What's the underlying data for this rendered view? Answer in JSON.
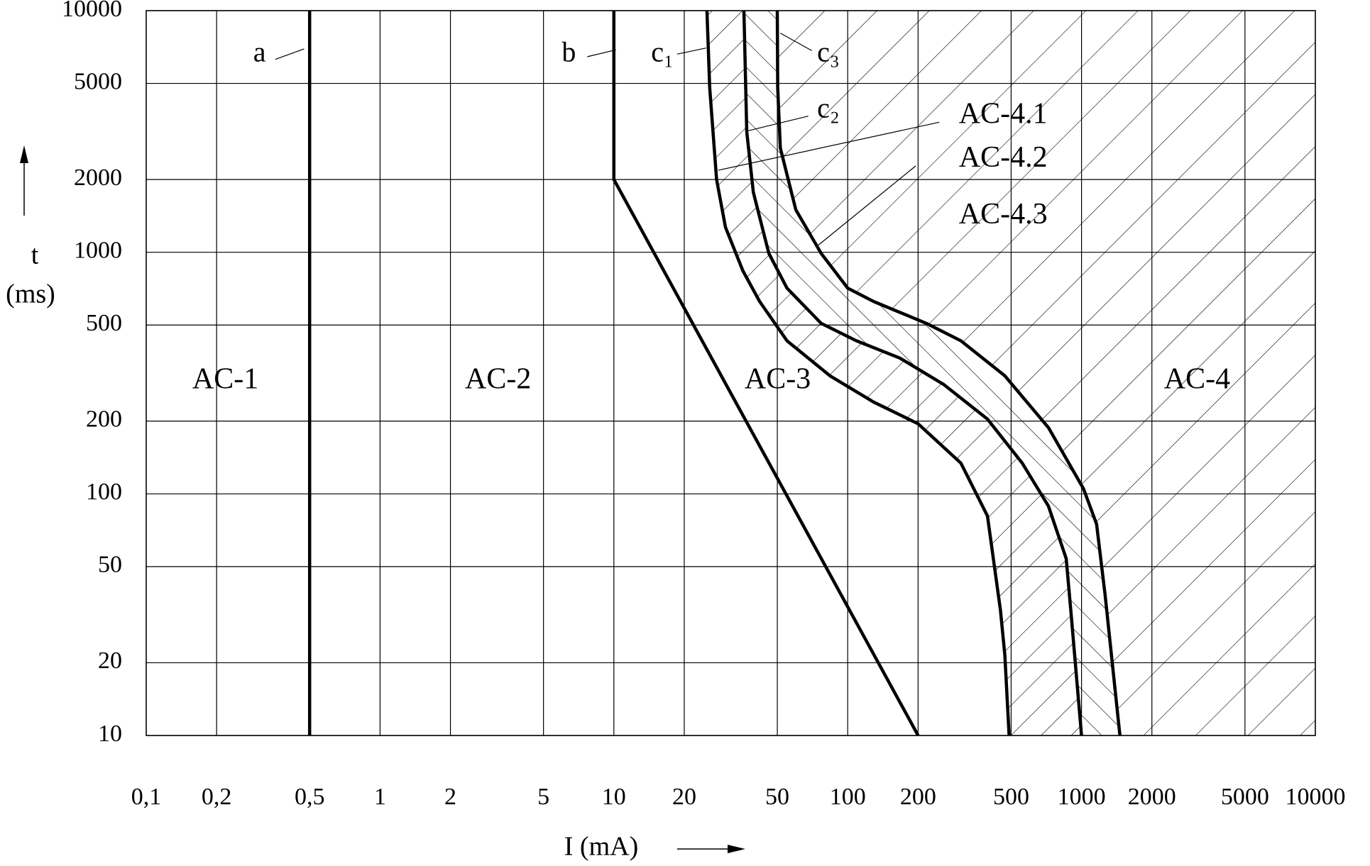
{
  "chart_data": {
    "type": "line",
    "xlabel": "I (mA)",
    "ylabel": "t",
    "ylabel_unit": "(ms)",
    "xlog": true,
    "ylog": true,
    "grid": true,
    "xlim": [
      0.1,
      10000
    ],
    "ylim": [
      10,
      10000
    ],
    "xticks": [
      {
        "value": 0.1,
        "label": "0,1"
      },
      {
        "value": 0.2,
        "label": "0,2"
      },
      {
        "value": 0.5,
        "label": "0,5"
      },
      1,
      2,
      5,
      10,
      20,
      50,
      100,
      200,
      500,
      1000,
      2000,
      5000,
      10000
    ],
    "yticks": [
      10,
      20,
      50,
      100,
      200,
      500,
      1000,
      2000,
      5000,
      10000
    ],
    "series": [
      {
        "name": "a",
        "color": "#000000",
        "x": [
          0.5,
          0.5
        ],
        "values": [
          10000,
          10
        ]
      },
      {
        "name": "b",
        "color": "#000000",
        "x": [
          10,
          10,
          200
        ],
        "values": [
          10000,
          2000,
          10
        ]
      },
      {
        "name": "c₁",
        "color": "#000000",
        "x": [
          25,
          25.7,
          27.5,
          30,
          35.6,
          42,
          55,
          84,
          129,
          200,
          305,
          396,
          450,
          470,
          490
        ],
        "values": [
          10000,
          4800,
          2000,
          1270,
          840,
          626,
          430,
          308,
          240,
          195,
          134,
          81,
          33,
          21.5,
          10
        ]
      },
      {
        "name": "c₂",
        "color": "#000000",
        "x": [
          36,
          37,
          39.5,
          46,
          55,
          77,
          109,
          167,
          257,
          396,
          558,
          722,
          860,
          900,
          1000
        ],
        "values": [
          10000,
          3150,
          1770,
          990,
          710,
          508,
          430,
          365,
          284,
          204,
          134,
          89,
          54,
          33,
          10
        ]
      },
      {
        "name": "c₃",
        "color": "#000000",
        "x": [
          50,
          50.2,
          51.5,
          60,
          77,
          100,
          129,
          217,
          305,
          470,
          722,
          1020,
          1160,
          1260,
          1460
        ],
        "values": [
          10000,
          4800,
          2700,
          1500,
          990,
          710,
          626,
          508,
          430,
          308,
          188,
          105,
          75,
          38.5,
          10
        ]
      }
    ],
    "annotations": [
      "AC-4.1",
      "AC-4.2",
      "AC-4.3",
      "AC-1",
      "AC-2",
      "AC-3",
      "AC-4"
    ]
  }
}
